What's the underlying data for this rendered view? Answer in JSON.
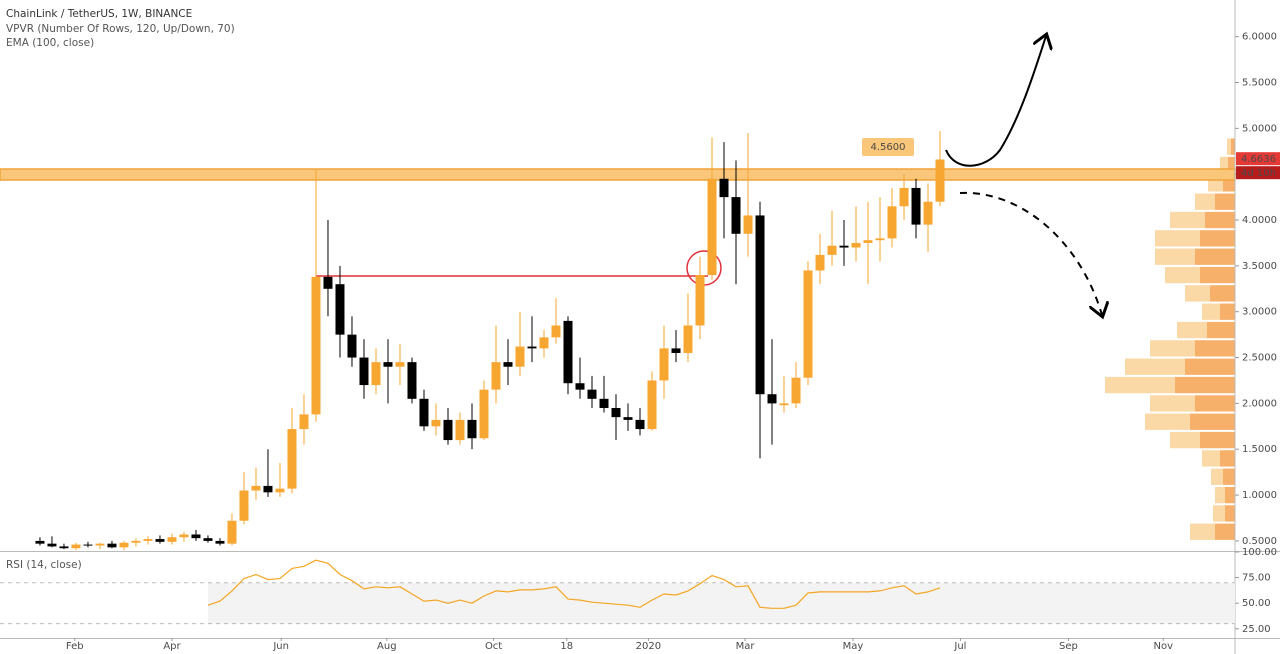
{
  "chart_data": [
    {
      "type": "candlestick",
      "title": "ChainLink / TetherUS, 1W, BINANCE",
      "indicators": [
        "VPVR (Number Of Rows, 120, Up/Down, 70)",
        "EMA (100, close)"
      ],
      "up_color": "#f7a731",
      "down_color": "#000000",
      "open": [
        0.5,
        0.47,
        0.44,
        0.42,
        0.46,
        0.45,
        0.47,
        0.43,
        0.48,
        0.5,
        0.52,
        0.49,
        0.54,
        0.57,
        0.53,
        0.5,
        0.47,
        0.72,
        1.05,
        1.1,
        1.03,
        1.07,
        1.72,
        1.88,
        3.38,
        3.3,
        2.75,
        2.5,
        2.2,
        2.45,
        2.4,
        2.45,
        2.05,
        1.75,
        1.82,
        1.6,
        1.82,
        1.62,
        2.15,
        2.45,
        2.4,
        2.62,
        2.6,
        2.72,
        2.9,
        2.22,
        2.15,
        2.05,
        1.95,
        1.85,
        1.82,
        1.72,
        2.25,
        2.6,
        2.55,
        2.85,
        3.4,
        4.45,
        4.25,
        3.85,
        4.05,
        2.1,
        1.98,
        2.0,
        2.28,
        3.45,
        3.62,
        3.72,
        3.7,
        3.75,
        3.78,
        3.8,
        4.15,
        4.35,
        3.95,
        4.2
      ],
      "high": [
        0.54,
        0.55,
        0.47,
        0.48,
        0.49,
        0.48,
        0.5,
        0.5,
        0.53,
        0.55,
        0.56,
        0.58,
        0.6,
        0.62,
        0.56,
        0.53,
        0.8,
        1.25,
        1.3,
        1.5,
        1.35,
        1.95,
        2.1,
        4.55,
        4.0,
        3.5,
        2.95,
        2.7,
        2.6,
        2.7,
        2.65,
        2.5,
        2.15,
        2.0,
        1.95,
        1.9,
        2.0,
        2.25,
        2.85,
        2.7,
        3.0,
        2.95,
        2.8,
        3.15,
        2.95,
        2.5,
        2.3,
        2.3,
        2.1,
        2.0,
        1.95,
        2.35,
        2.85,
        2.8,
        3.2,
        3.6,
        4.9,
        4.85,
        4.65,
        4.95,
        4.2,
        2.7,
        2.3,
        2.45,
        3.55,
        3.85,
        4.1,
        4.0,
        4.15,
        4.2,
        4.25,
        4.35,
        4.5,
        4.45,
        4.4,
        4.97
      ],
      "low": [
        0.45,
        0.43,
        0.41,
        0.4,
        0.43,
        0.41,
        0.42,
        0.4,
        0.44,
        0.46,
        0.47,
        0.46,
        0.49,
        0.5,
        0.48,
        0.45,
        0.45,
        0.68,
        0.95,
        0.98,
        0.98,
        1.02,
        1.55,
        1.8,
        2.95,
        2.5,
        2.4,
        2.05,
        2.1,
        2.0,
        2.2,
        2.0,
        1.7,
        1.65,
        1.55,
        1.55,
        1.5,
        1.6,
        2.0,
        2.2,
        2.3,
        2.45,
        2.5,
        2.65,
        2.1,
        2.05,
        1.95,
        1.9,
        1.6,
        1.7,
        1.65,
        1.7,
        2.05,
        2.45,
        2.45,
        2.7,
        3.35,
        3.8,
        3.3,
        3.6,
        1.4,
        1.55,
        1.9,
        1.95,
        2.2,
        3.3,
        3.5,
        3.5,
        3.55,
        3.3,
        3.55,
        3.7,
        4.0,
        3.8,
        3.65,
        4.15
      ],
      "close": [
        0.47,
        0.44,
        0.42,
        0.46,
        0.45,
        0.47,
        0.43,
        0.48,
        0.5,
        0.52,
        0.49,
        0.54,
        0.57,
        0.53,
        0.5,
        0.47,
        0.72,
        1.05,
        1.1,
        1.03,
        1.07,
        1.72,
        1.88,
        3.38,
        3.25,
        2.75,
        2.5,
        2.2,
        2.45,
        2.4,
        2.45,
        2.05,
        1.75,
        1.82,
        1.6,
        1.82,
        1.62,
        2.15,
        2.45,
        2.4,
        2.62,
        2.6,
        2.72,
        2.85,
        2.22,
        2.15,
        2.05,
        1.95,
        1.85,
        1.82,
        1.72,
        2.25,
        2.6,
        2.55,
        2.85,
        3.4,
        4.45,
        4.25,
        3.85,
        4.05,
        2.1,
        2.0,
        2.0,
        2.28,
        3.45,
        3.62,
        3.72,
        3.7,
        3.75,
        3.78,
        3.8,
        4.15,
        4.35,
        3.95,
        4.2,
        4.66
      ],
      "xlim": [
        -3.33,
        99.58
      ],
      "ylim": [
        0.39,
        6.4
      ],
      "yticks": [
        {
          "value": 0.5,
          "label": "0.5000"
        },
        {
          "value": 1.0,
          "label": "1.0000"
        },
        {
          "value": 1.5,
          "label": "1.5000"
        },
        {
          "value": 2.0,
          "label": "2.0000"
        },
        {
          "value": 2.5,
          "label": "2.5000"
        },
        {
          "value": 3.0,
          "label": "3.0000"
        },
        {
          "value": 3.5,
          "label": "3.5000"
        },
        {
          "value": 4.0,
          "label": "4.0000"
        },
        {
          "value": 4.5,
          "label": "4.5000"
        },
        {
          "value": 5.0,
          "label": "5.0000"
        },
        {
          "value": 5.5,
          "label": "5.5000"
        },
        {
          "value": 6.0,
          "label": "6.0000"
        }
      ],
      "last_price": 4.6636,
      "countdown": "4d 10h",
      "annotation": {
        "value": 4.56,
        "label": "4.5600"
      },
      "volume_profile": {
        "up_color": "#fad9a6",
        "down_color": "#f6b06a",
        "prices": [
          0.6,
          0.8,
          1.0,
          1.2,
          1.4,
          1.6,
          1.8,
          2.0,
          2.2,
          2.4,
          2.6,
          2.8,
          3.0,
          3.2,
          3.4,
          3.6,
          3.8,
          4.0,
          4.2,
          4.4,
          4.6,
          4.8
        ],
        "up": [
          25,
          12,
          10,
          12,
          18,
          30,
          45,
          45,
          70,
          60,
          45,
          30,
          18,
          25,
          35,
          40,
          45,
          35,
          20,
          15,
          8,
          4
        ],
        "down": [
          20,
          10,
          10,
          12,
          15,
          35,
          45,
          40,
          60,
          50,
          40,
          28,
          15,
          25,
          35,
          40,
          35,
          30,
          20,
          12,
          7,
          4
        ]
      }
    },
    {
      "type": "line",
      "title": "RSI (14, close)",
      "color": "#f5a623",
      "values": [
        null,
        null,
        null,
        null,
        null,
        null,
        null,
        null,
        null,
        null,
        null,
        null,
        null,
        null,
        48,
        52,
        62,
        74,
        78,
        73,
        74,
        84,
        86,
        92,
        89,
        78,
        72,
        64,
        66,
        65,
        66,
        59,
        52,
        53,
        50,
        53,
        50,
        57,
        62,
        61,
        63,
        63,
        64,
        66,
        54,
        53,
        51,
        50,
        49,
        48,
        46,
        53,
        59,
        58,
        62,
        69,
        77,
        73,
        66,
        67,
        46,
        45,
        45,
        48,
        60,
        61,
        61,
        61,
        61,
        61,
        62,
        65,
        67,
        59,
        61,
        65
      ],
      "band": [
        30,
        70
      ],
      "xlim": [
        -3.33,
        99.58
      ],
      "ylim": [
        16,
        100
      ],
      "yticks": [
        {
          "value": 25,
          "label": "25.00"
        },
        {
          "value": 50,
          "label": "50.00"
        },
        {
          "value": 75,
          "label": "75.00"
        },
        {
          "value": 100,
          "label": "100.00"
        }
      ],
      "xticks": [
        {
          "value": 2.9,
          "label": "Feb"
        },
        {
          "value": 11,
          "label": "Apr"
        },
        {
          "value": 20.1,
          "label": "Jun"
        },
        {
          "value": 28.9,
          "label": "Aug"
        },
        {
          "value": 37.8,
          "label": "Oct"
        },
        {
          "value": 43.9,
          "label": "18"
        },
        {
          "value": 50.7,
          "label": "2020"
        },
        {
          "value": 58.75,
          "label": "Mar"
        },
        {
          "value": 67.75,
          "label": "May"
        },
        {
          "value": 76.7,
          "label": "Jul"
        },
        {
          "value": 85.7,
          "label": "Sep"
        },
        {
          "value": 93.6,
          "label": "Nov"
        }
      ]
    }
  ]
}
